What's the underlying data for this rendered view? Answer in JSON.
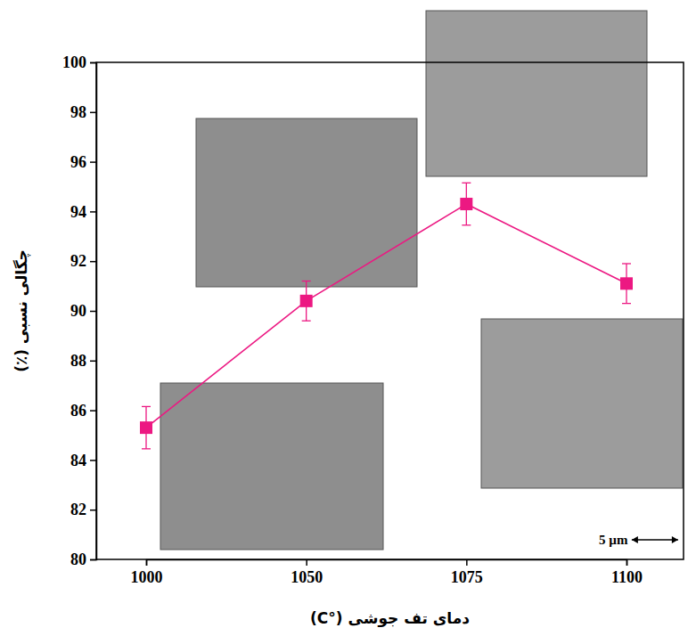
{
  "chart_data": {
    "type": "line",
    "x_label": "دمای تف جوشی (°C)",
    "y_label": "چگالی نسبی (٪)",
    "categories": [
      "1000",
      "1050",
      "1075",
      "1100"
    ],
    "series": [
      {
        "color": "#ec1882",
        "marker": "square",
        "line_style": "solid",
        "values": [
          85.3,
          90.4,
          94.3,
          91.1
        ],
        "errors": [
          0.85,
          0.8,
          0.85,
          0.8
        ]
      }
    ],
    "ylim": [
      80,
      100
    ],
    "yticks": [
      80,
      82,
      84,
      86,
      88,
      90,
      92,
      94,
      96,
      98,
      100
    ],
    "grid": false,
    "annotation": "5 µm"
  }
}
